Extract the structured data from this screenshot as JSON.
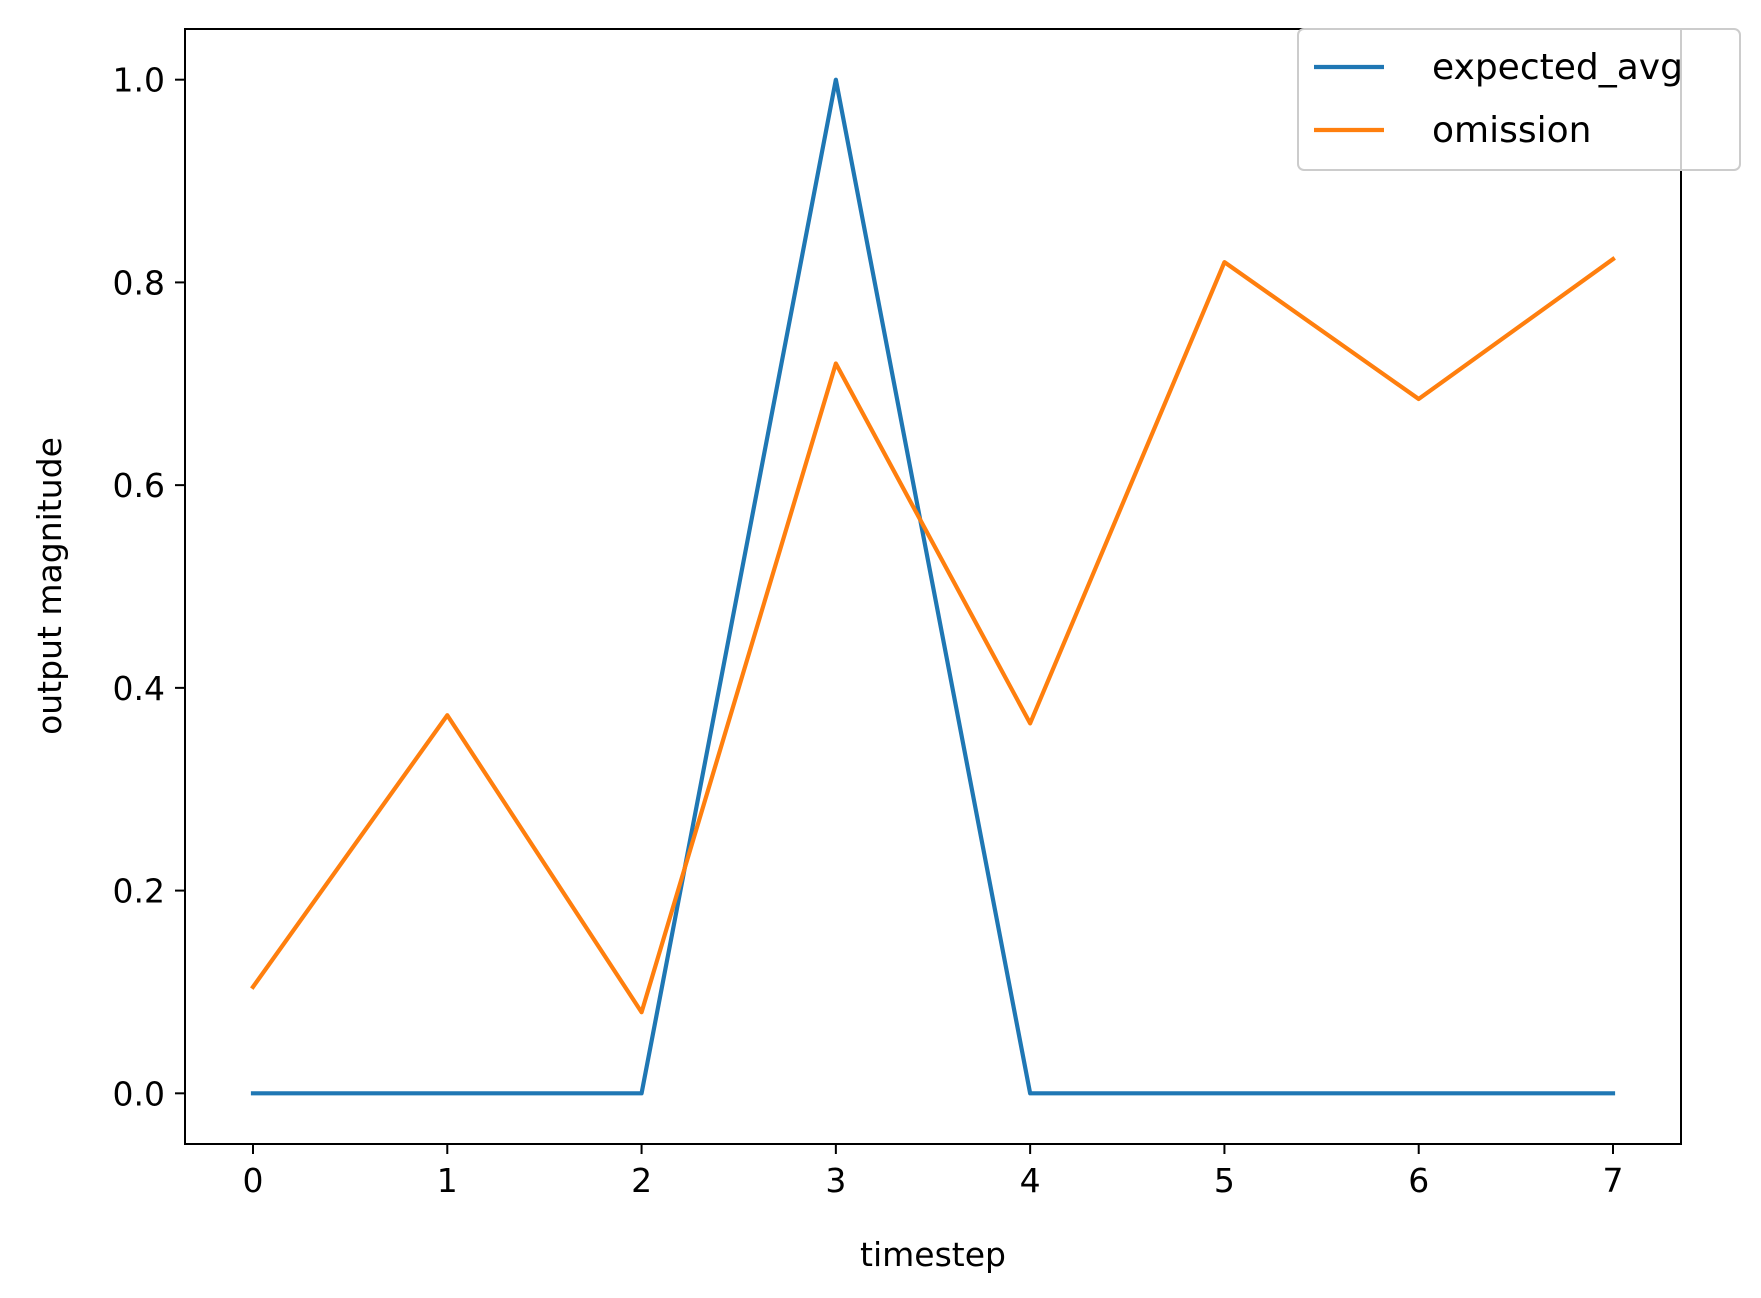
{
  "chart_data": {
    "type": "line",
    "x": [
      0,
      1,
      2,
      3,
      4,
      5,
      6,
      7
    ],
    "series": [
      {
        "name": "expected_avg",
        "color": "#1f77b4",
        "values": [
          0,
          0,
          0,
          1.0,
          0,
          0,
          0,
          0
        ]
      },
      {
        "name": "omission",
        "color": "#ff7f0e",
        "values": [
          0.105,
          0.373,
          0.08,
          0.72,
          0.365,
          0.82,
          0.685,
          0.823
        ]
      }
    ],
    "xlabel": "timestep",
    "ylabel": "output magnitude",
    "xlim": [
      -0.35,
      7.35
    ],
    "ylim": [
      -0.05,
      1.05
    ],
    "xticks": [
      0,
      1,
      2,
      3,
      4,
      5,
      6,
      7
    ],
    "xtick_labels": [
      "0",
      "1",
      "2",
      "3",
      "4",
      "5",
      "6",
      "7"
    ],
    "yticks": [
      0.0,
      0.2,
      0.4,
      0.6,
      0.8,
      1.0
    ],
    "ytick_labels": [
      "0.0",
      "0.2",
      "0.4",
      "0.6",
      "0.8",
      "1.0"
    ],
    "grid": false,
    "legend_position": "top-right"
  }
}
